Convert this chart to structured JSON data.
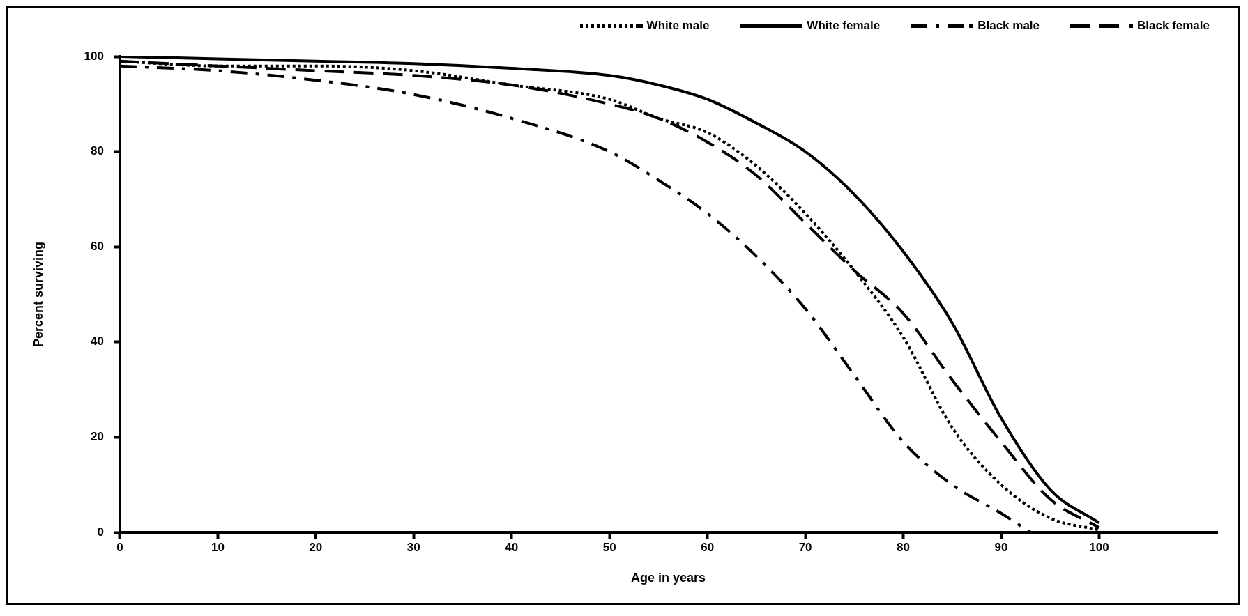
{
  "chart_data": {
    "type": "line",
    "xlabel": "Age in years",
    "ylabel": "Percent surviving",
    "xlim": [
      0,
      112
    ],
    "xticks": [
      0,
      10,
      20,
      30,
      40,
      50,
      60,
      70,
      80,
      90,
      100
    ],
    "ylim": [
      0,
      100
    ],
    "yticks": [
      0,
      20,
      40,
      60,
      80,
      100
    ],
    "legend": "top right",
    "grid": false,
    "marker": "none",
    "series": [
      {
        "name": "White male",
        "color": "#000000",
        "line_style": "dotted",
        "x": [
          0,
          10,
          20,
          30,
          40,
          50,
          55,
          60,
          65,
          70,
          75,
          80,
          85,
          90,
          95,
          100
        ],
        "values": [
          99,
          98,
          98,
          97,
          94,
          91,
          87,
          84,
          77,
          67,
          55,
          41,
          22,
          10,
          3,
          0.5
        ]
      },
      {
        "name": "White female",
        "color": "#000000",
        "line_style": "solid",
        "x": [
          0,
          10,
          20,
          30,
          40,
          50,
          55,
          60,
          65,
          70,
          75,
          80,
          85,
          90,
          95,
          100
        ],
        "values": [
          100,
          99.5,
          99,
          98.5,
          97.5,
          96,
          94,
          91,
          86,
          80,
          71,
          59,
          44,
          24,
          9,
          2
        ]
      },
      {
        "name": "Black male",
        "color": "#000000",
        "line_style": "dashdot",
        "x": [
          0,
          10,
          20,
          30,
          40,
          50,
          55,
          60,
          65,
          70,
          75,
          80,
          85,
          90,
          93
        ],
        "values": [
          98,
          97,
          95,
          92,
          87,
          80,
          74,
          67,
          58,
          47,
          33,
          19,
          10,
          4,
          0
        ]
      },
      {
        "name": "Black female",
        "color": "#000000",
        "line_style": "dashed",
        "x": [
          0,
          10,
          20,
          30,
          40,
          50,
          55,
          60,
          65,
          70,
          75,
          80,
          85,
          90,
          95,
          100
        ],
        "values": [
          99,
          98,
          97,
          96,
          94,
          90,
          87,
          82,
          75,
          65,
          55,
          46,
          32,
          19,
          7,
          1
        ]
      }
    ]
  }
}
